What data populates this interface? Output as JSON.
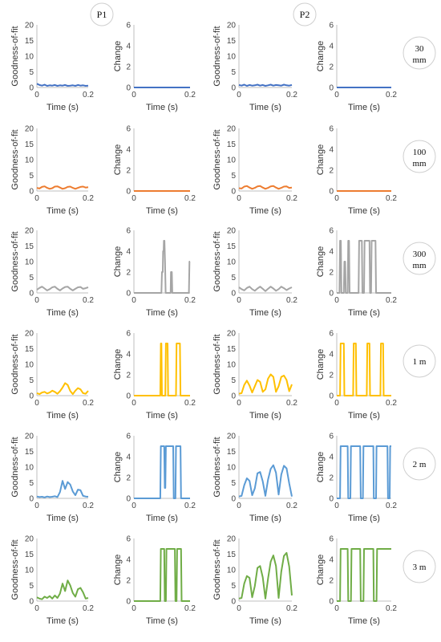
{
  "panel_labels": [
    "P1",
    "P2"
  ],
  "row_labels": [
    {
      "line1": "30",
      "line2": "mm"
    },
    {
      "line1": "100",
      "line2": "mm"
    },
    {
      "line1": "300",
      "line2": "mm"
    },
    {
      "line1": "1 m",
      "line2": ""
    },
    {
      "line1": "2 m",
      "line2": ""
    },
    {
      "line1": "3 m",
      "line2": ""
    }
  ],
  "axes_text": {
    "gof_ylabel": "Goodness-of-fit",
    "change_ylabel": "Change",
    "xlabel": "Time (s)",
    "x_ticks": [
      "0",
      "0.2"
    ],
    "gof_ticks": [
      "0",
      "5",
      "10",
      "15",
      "20"
    ],
    "change_ticks": [
      "0",
      "2",
      "4",
      "6"
    ]
  },
  "row_colors": [
    "#4472C4",
    "#ED7D31",
    "#A5A5A5",
    "#FFC000",
    "#5B9BD5",
    "#70AD47"
  ],
  "chart_data": [
    {
      "type": "line",
      "panel": "P1",
      "row": "30 mm",
      "metric": "Goodness-of-fit",
      "xlim": [
        0,
        0.2
      ],
      "ylim": [
        0,
        20
      ],
      "x": [
        0,
        0.01,
        0.02,
        0.03,
        0.04,
        0.05,
        0.06,
        0.07,
        0.08,
        0.09,
        0.1,
        0.11,
        0.12,
        0.13,
        0.14,
        0.15,
        0.16,
        0.17,
        0.18,
        0.19,
        0.2
      ],
      "y": [
        1.2,
        0.8,
        0.6,
        0.9,
        0.5,
        0.7,
        0.6,
        0.8,
        0.5,
        0.7,
        0.6,
        0.8,
        0.5,
        0.6,
        0.7,
        0.5,
        0.8,
        0.6,
        0.7,
        0.5,
        0.6
      ]
    },
    {
      "type": "line",
      "panel": "P1",
      "row": "30 mm",
      "metric": "Change",
      "xlim": [
        0,
        0.2
      ],
      "ylim": [
        0,
        6
      ],
      "x": [
        0,
        0.2
      ],
      "y": [
        0,
        0
      ]
    },
    {
      "type": "line",
      "panel": "P2",
      "row": "30 mm",
      "metric": "Goodness-of-fit",
      "xlim": [
        0,
        0.2
      ],
      "ylim": [
        0,
        20
      ],
      "x": [
        0,
        0.01,
        0.02,
        0.03,
        0.04,
        0.05,
        0.06,
        0.07,
        0.08,
        0.09,
        0.1,
        0.11,
        0.12,
        0.13,
        0.14,
        0.15,
        0.16,
        0.17,
        0.18,
        0.19,
        0.2
      ],
      "y": [
        0.8,
        0.6,
        0.9,
        0.5,
        0.8,
        0.6,
        0.7,
        0.9,
        0.6,
        0.8,
        0.5,
        0.7,
        0.9,
        0.6,
        0.8,
        0.7,
        0.6,
        0.9,
        0.7,
        0.6,
        0.8
      ]
    },
    {
      "type": "line",
      "panel": "P2",
      "row": "30 mm",
      "metric": "Change",
      "xlim": [
        0,
        0.2
      ],
      "ylim": [
        0,
        6
      ],
      "x": [
        0,
        0.2
      ],
      "y": [
        0,
        0
      ]
    },
    {
      "type": "line",
      "panel": "P1",
      "row": "100 mm",
      "metric": "Goodness-of-fit",
      "xlim": [
        0,
        0.2
      ],
      "ylim": [
        0,
        20
      ],
      "x": [
        0,
        0.01,
        0.02,
        0.03,
        0.04,
        0.05,
        0.06,
        0.07,
        0.08,
        0.09,
        0.1,
        0.11,
        0.12,
        0.13,
        0.14,
        0.15,
        0.16,
        0.17,
        0.18,
        0.19,
        0.2
      ],
      "y": [
        1.0,
        0.8,
        1.3,
        1.5,
        1.0,
        0.7,
        0.9,
        1.4,
        1.5,
        1.1,
        0.7,
        0.9,
        1.3,
        1.4,
        1.0,
        0.7,
        1.0,
        1.3,
        1.4,
        1.1,
        1.2
      ]
    },
    {
      "type": "line",
      "panel": "P1",
      "row": "100 mm",
      "metric": "Change",
      "xlim": [
        0,
        0.2
      ],
      "ylim": [
        0,
        6
      ],
      "x": [
        0,
        0.2
      ],
      "y": [
        0,
        0
      ]
    },
    {
      "type": "line",
      "panel": "P2",
      "row": "100 mm",
      "metric": "Goodness-of-fit",
      "xlim": [
        0,
        0.2
      ],
      "ylim": [
        0,
        20
      ],
      "x": [
        0,
        0.01,
        0.02,
        0.03,
        0.04,
        0.05,
        0.06,
        0.07,
        0.08,
        0.09,
        0.1,
        0.11,
        0.12,
        0.13,
        0.14,
        0.15,
        0.16,
        0.17,
        0.18,
        0.19,
        0.2
      ],
      "y": [
        0.9,
        0.8,
        1.4,
        1.6,
        1.1,
        0.7,
        1.0,
        1.5,
        1.6,
        1.1,
        0.7,
        1.0,
        1.5,
        1.6,
        1.1,
        0.7,
        1.0,
        1.4,
        1.5,
        1.0,
        1.1
      ]
    },
    {
      "type": "line",
      "panel": "P2",
      "row": "100 mm",
      "metric": "Change",
      "xlim": [
        0,
        0.2
      ],
      "ylim": [
        0,
        6
      ],
      "x": [
        0,
        0.2
      ],
      "y": [
        0,
        0
      ]
    },
    {
      "type": "line",
      "panel": "P1",
      "row": "300 mm",
      "metric": "Goodness-of-fit",
      "xlim": [
        0,
        0.2
      ],
      "ylim": [
        0,
        20
      ],
      "x": [
        0,
        0.01,
        0.02,
        0.03,
        0.04,
        0.05,
        0.06,
        0.07,
        0.08,
        0.09,
        0.1,
        0.11,
        0.12,
        0.13,
        0.14,
        0.15,
        0.16,
        0.17,
        0.18,
        0.19,
        0.2
      ],
      "y": [
        1.0,
        1.6,
        2.0,
        1.4,
        0.8,
        1.2,
        1.8,
        2.0,
        1.3,
        0.8,
        1.4,
        1.9,
        2.0,
        1.3,
        0.8,
        1.3,
        1.8,
        1.9,
        1.3,
        1.5,
        1.8
      ]
    },
    {
      "type": "line",
      "panel": "P1",
      "row": "300 mm",
      "metric": "Change",
      "xlim": [
        0,
        0.2
      ],
      "ylim": [
        0,
        6
      ],
      "x": [
        0,
        0.098,
        0.1,
        0.103,
        0.104,
        0.106,
        0.107,
        0.109,
        0.111,
        0.113,
        0.131,
        0.132,
        0.135,
        0.137,
        0.196,
        0.198,
        0.2
      ],
      "y": [
        0,
        0,
        2,
        2,
        4,
        4,
        5,
        5,
        3,
        0,
        0,
        2,
        2,
        0,
        0,
        3,
        3
      ]
    },
    {
      "type": "line",
      "panel": "P2",
      "row": "300 mm",
      "metric": "Goodness-of-fit",
      "xlim": [
        0,
        0.2
      ],
      "ylim": [
        0,
        20
      ],
      "x": [
        0,
        0.01,
        0.02,
        0.03,
        0.04,
        0.05,
        0.06,
        0.07,
        0.08,
        0.09,
        0.1,
        0.11,
        0.12,
        0.13,
        0.14,
        0.15,
        0.16,
        0.17,
        0.18,
        0.19,
        0.2
      ],
      "y": [
        1.8,
        1.2,
        0.8,
        1.6,
        2.0,
        1.2,
        0.7,
        1.4,
        2.0,
        1.3,
        0.6,
        1.3,
        2.0,
        1.4,
        0.7,
        1.2,
        2.0,
        1.5,
        0.9,
        1.4,
        1.8
      ]
    },
    {
      "type": "line",
      "panel": "P2",
      "row": "300 mm",
      "metric": "Change",
      "xlim": [
        0,
        0.2
      ],
      "ylim": [
        0,
        6
      ],
      "x": [
        0,
        0.01,
        0.012,
        0.015,
        0.017,
        0.026,
        0.028,
        0.031,
        0.033,
        0.04,
        0.042,
        0.045,
        0.047,
        0.08,
        0.082,
        0.092,
        0.094,
        0.1,
        0.102,
        0.12,
        0.122,
        0.126,
        0.128,
        0.142,
        0.144,
        0.15,
        0.152,
        0.2
      ],
      "y": [
        0,
        0,
        5,
        5,
        0,
        0,
        3,
        3,
        0,
        0,
        5,
        5,
        0,
        0,
        5,
        5,
        0,
        0,
        5,
        5,
        0,
        0,
        5,
        5,
        0,
        0,
        0,
        0
      ]
    },
    {
      "type": "line",
      "panel": "P1",
      "row": "1 m",
      "metric": "Goodness-of-fit",
      "xlim": [
        0,
        0.2
      ],
      "ylim": [
        0,
        20
      ],
      "x": [
        0,
        0.01,
        0.02,
        0.03,
        0.04,
        0.05,
        0.06,
        0.07,
        0.08,
        0.09,
        0.1,
        0.11,
        0.12,
        0.13,
        0.14,
        0.15,
        0.16,
        0.17,
        0.18,
        0.19,
        0.2
      ],
      "y": [
        0.8,
        0.5,
        1.0,
        1.2,
        0.7,
        1.0,
        1.6,
        1.2,
        0.6,
        1.4,
        2.6,
        4.0,
        3.4,
        1.5,
        0.5,
        1.6,
        2.4,
        2.0,
        0.8,
        0.6,
        1.5
      ]
    },
    {
      "type": "line",
      "panel": "P1",
      "row": "1 m",
      "metric": "Change",
      "xlim": [
        0,
        0.2
      ],
      "ylim": [
        0,
        6
      ],
      "x": [
        0,
        0.094,
        0.096,
        0.098,
        0.1,
        0.112,
        0.114,
        0.12,
        0.122,
        0.15,
        0.152,
        0.164,
        0.166,
        0.2
      ],
      "y": [
        0,
        0,
        5,
        5,
        0,
        0,
        5,
        5,
        0,
        0,
        5,
        5,
        0,
        0
      ]
    },
    {
      "type": "line",
      "panel": "P2",
      "row": "1 m",
      "metric": "Goodness-of-fit",
      "xlim": [
        0,
        0.2
      ],
      "ylim": [
        0,
        20
      ],
      "x": [
        0,
        0.01,
        0.02,
        0.03,
        0.04,
        0.05,
        0.06,
        0.07,
        0.08,
        0.09,
        0.1,
        0.11,
        0.12,
        0.13,
        0.14,
        0.15,
        0.16,
        0.17,
        0.18,
        0.19,
        0.2
      ],
      "y": [
        0.6,
        0.8,
        3.4,
        4.8,
        3.2,
        1.0,
        3.0,
        5.0,
        4.4,
        1.2,
        2.0,
        5.4,
        6.8,
        6.0,
        1.2,
        3.0,
        6.0,
        6.4,
        5.0,
        1.4,
        3.6
      ]
    },
    {
      "type": "line",
      "panel": "P2",
      "row": "1 m",
      "metric": "Change",
      "xlim": [
        0,
        0.2
      ],
      "ylim": [
        0,
        6
      ],
      "x": [
        0,
        0.012,
        0.014,
        0.026,
        0.028,
        0.06,
        0.062,
        0.07,
        0.072,
        0.11,
        0.112,
        0.12,
        0.122,
        0.16,
        0.162,
        0.17,
        0.172,
        0.2
      ],
      "y": [
        0,
        0,
        5,
        5,
        0,
        0,
        5,
        5,
        0,
        0,
        5,
        5,
        0,
        0,
        5,
        5,
        0,
        0
      ]
    },
    {
      "type": "line",
      "panel": "P1",
      "row": "2 m",
      "metric": "Goodness-of-fit",
      "xlim": [
        0,
        0.2
      ],
      "ylim": [
        0,
        20
      ],
      "x": [
        0,
        0.01,
        0.02,
        0.03,
        0.04,
        0.05,
        0.06,
        0.07,
        0.08,
        0.09,
        0.1,
        0.11,
        0.12,
        0.13,
        0.14,
        0.15,
        0.16,
        0.17,
        0.18,
        0.19,
        0.2
      ],
      "y": [
        0.6,
        0.4,
        0.5,
        0.3,
        0.6,
        0.4,
        0.5,
        0.7,
        0.4,
        2.0,
        5.6,
        3.0,
        5.2,
        4.4,
        2.2,
        1.0,
        2.8,
        2.6,
        0.8,
        0.6,
        0.5
      ]
    },
    {
      "type": "line",
      "panel": "P1",
      "row": "2 m",
      "metric": "Change",
      "xlim": [
        0,
        0.2
      ],
      "ylim": [
        0,
        6
      ],
      "x": [
        0,
        0.094,
        0.096,
        0.108,
        0.11,
        0.112,
        0.114,
        0.14,
        0.142,
        0.148,
        0.15,
        0.152,
        0.154,
        0.166,
        0.168,
        0.2
      ],
      "y": [
        0,
        0,
        5,
        5,
        1,
        1,
        5,
        5,
        0,
        0,
        5,
        5,
        5,
        5,
        0,
        0
      ]
    },
    {
      "type": "line",
      "panel": "P2",
      "row": "2 m",
      "metric": "Goodness-of-fit",
      "xlim": [
        0,
        0.2
      ],
      "ylim": [
        0,
        20
      ],
      "x": [
        0,
        0.01,
        0.02,
        0.03,
        0.04,
        0.05,
        0.06,
        0.07,
        0.08,
        0.09,
        0.1,
        0.11,
        0.12,
        0.13,
        0.14,
        0.15,
        0.16,
        0.17,
        0.18,
        0.19,
        0.2
      ],
      "y": [
        0.6,
        0.8,
        4.2,
        6.4,
        5.6,
        1.0,
        3.2,
        8.0,
        8.4,
        5.4,
        0.8,
        6.0,
        9.4,
        10.6,
        8.2,
        1.2,
        7.6,
        10.4,
        9.6,
        4.8,
        0.6
      ]
    },
    {
      "type": "line",
      "panel": "P2",
      "row": "2 m",
      "metric": "Change",
      "xlim": [
        0,
        0.2
      ],
      "ylim": [
        0,
        6
      ],
      "x": [
        0,
        0.012,
        0.014,
        0.04,
        0.042,
        0.05,
        0.052,
        0.086,
        0.088,
        0.096,
        0.098,
        0.134,
        0.136,
        0.144,
        0.146,
        0.186,
        0.188,
        0.194,
        0.196,
        0.2
      ],
      "y": [
        0,
        0,
        5,
        5,
        0,
        0,
        5,
        5,
        0,
        0,
        5,
        5,
        0,
        0,
        5,
        5,
        0,
        0,
        5,
        5
      ]
    },
    {
      "type": "line",
      "panel": "P1",
      "row": "3 m",
      "metric": "Goodness-of-fit",
      "xlim": [
        0,
        0.2
      ],
      "ylim": [
        0,
        20
      ],
      "x": [
        0,
        0.01,
        0.02,
        0.03,
        0.04,
        0.05,
        0.06,
        0.07,
        0.08,
        0.09,
        0.1,
        0.11,
        0.12,
        0.13,
        0.14,
        0.15,
        0.16,
        0.17,
        0.18,
        0.19,
        0.2
      ],
      "y": [
        1.2,
        0.8,
        0.6,
        1.4,
        1.0,
        1.6,
        0.8,
        1.8,
        1.0,
        2.4,
        5.6,
        3.2,
        6.6,
        5.0,
        2.6,
        1.4,
        3.8,
        4.2,
        2.8,
        0.8,
        1.0
      ]
    },
    {
      "type": "line",
      "panel": "P1",
      "row": "3 m",
      "metric": "Change",
      "xlim": [
        0,
        0.2
      ],
      "ylim": [
        0,
        6
      ],
      "x": [
        0,
        0.094,
        0.096,
        0.108,
        0.11,
        0.114,
        0.116,
        0.146,
        0.148,
        0.152,
        0.154,
        0.168,
        0.17,
        0.2
      ],
      "y": [
        0,
        0,
        5,
        5,
        0,
        0,
        5,
        5,
        0,
        0,
        5,
        5,
        0,
        0
      ]
    },
    {
      "type": "line",
      "panel": "P2",
      "row": "3 m",
      "metric": "Goodness-of-fit",
      "xlim": [
        0,
        0.2
      ],
      "ylim": [
        0,
        20
      ],
      "x": [
        0,
        0.01,
        0.02,
        0.03,
        0.04,
        0.05,
        0.06,
        0.07,
        0.08,
        0.09,
        0.1,
        0.11,
        0.12,
        0.13,
        0.14,
        0.15,
        0.16,
        0.17,
        0.18,
        0.19,
        0.2
      ],
      "y": [
        0.8,
        1.0,
        5.6,
        8.0,
        7.4,
        1.2,
        4.8,
        10.6,
        11.2,
        7.6,
        0.8,
        7.2,
        12.6,
        14.6,
        11.2,
        1.0,
        9.4,
        14.4,
        15.4,
        11.0,
        1.8
      ]
    },
    {
      "type": "line",
      "panel": "P2",
      "row": "3 m",
      "metric": "Change",
      "xlim": [
        0,
        0.2
      ],
      "ylim": [
        0,
        6
      ],
      "x": [
        0,
        0.012,
        0.014,
        0.04,
        0.042,
        0.052,
        0.054,
        0.086,
        0.088,
        0.098,
        0.1,
        0.134,
        0.136,
        0.146,
        0.148,
        0.2
      ],
      "y": [
        0,
        0,
        5,
        5,
        0,
        0,
        5,
        5,
        0,
        0,
        5,
        5,
        0,
        0,
        5,
        5
      ]
    }
  ]
}
